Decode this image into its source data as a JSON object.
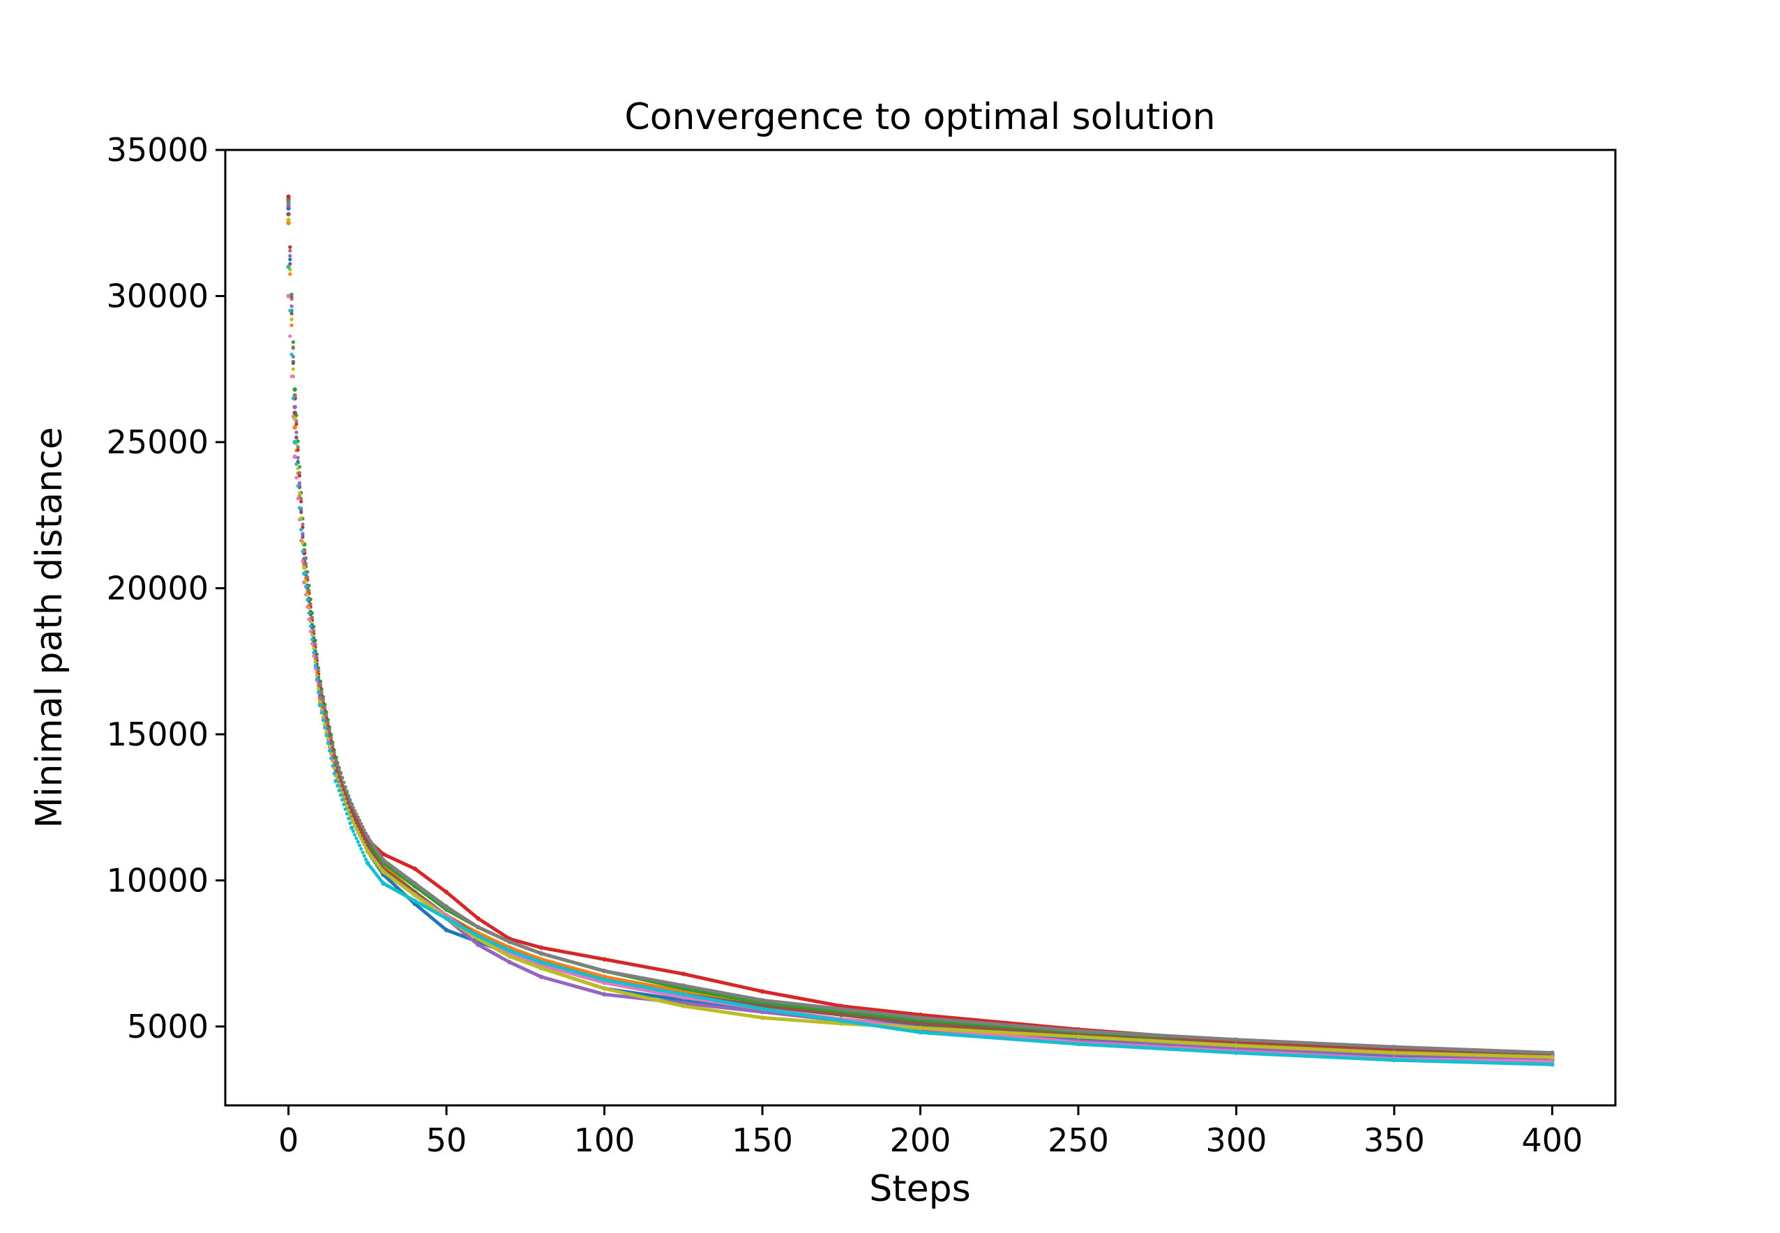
{
  "chart_data": {
    "type": "scatter",
    "title": "Convergence to optimal solution",
    "xlabel": "Steps",
    "ylabel": "Minimal path distance",
    "xlim": [
      -20,
      420
    ],
    "ylim": [
      2300,
      35000
    ],
    "xticks": [
      0,
      50,
      100,
      150,
      200,
      250,
      300,
      350,
      400
    ],
    "yticks": [
      5000,
      10000,
      15000,
      20000,
      25000,
      30000,
      35000
    ],
    "xtick_labels": [
      "0",
      "50",
      "100",
      "150",
      "200",
      "250",
      "300",
      "350",
      "400"
    ],
    "ytick_labels": [
      "5000",
      "10000",
      "15000",
      "20000",
      "25000",
      "30000",
      "35000"
    ],
    "grid": false,
    "legend": false,
    "series": [
      {
        "color": "#1f77b4",
        "x": [
          0,
          2,
          5,
          10,
          15,
          20,
          25,
          30,
          40,
          50,
          60,
          70,
          80,
          100,
          125,
          150,
          175,
          200,
          250,
          300,
          350,
          400
        ],
        "y": [
          33000,
          26000,
          21000,
          16500,
          13800,
          12200,
          11000,
          10200,
          9200,
          8300,
          7900,
          7500,
          7000,
          6300,
          5900,
          5500,
          5250,
          5000,
          4550,
          4250,
          4000,
          3850
        ]
      },
      {
        "color": "#ff7f0e",
        "x": [
          0,
          2,
          5,
          10,
          15,
          20,
          25,
          30,
          40,
          50,
          60,
          70,
          80,
          100,
          125,
          150,
          175,
          200,
          250,
          300,
          350,
          400
        ],
        "y": [
          32500,
          25500,
          20800,
          16200,
          13900,
          12300,
          11200,
          10500,
          9600,
          8800,
          8200,
          7700,
          7300,
          6700,
          6200,
          5700,
          5400,
          5100,
          4650,
          4350,
          4100,
          3950
        ]
      },
      {
        "color": "#2ca02c",
        "x": [
          0,
          2,
          5,
          10,
          15,
          20,
          25,
          30,
          40,
          50,
          60,
          70,
          80,
          100,
          125,
          150,
          175,
          200,
          250,
          300,
          350,
          400
        ],
        "y": [
          33300,
          26800,
          21500,
          16800,
          14200,
          12500,
          11300,
          10600,
          9800,
          9000,
          8400,
          7900,
          7500,
          6900,
          6300,
          5800,
          5500,
          5200,
          4750,
          4450,
          4200,
          4000
        ]
      },
      {
        "color": "#d62728",
        "x": [
          0,
          2,
          5,
          10,
          15,
          20,
          25,
          30,
          40,
          50,
          60,
          70,
          80,
          100,
          125,
          150,
          175,
          200,
          250,
          300,
          350,
          400
        ],
        "y": [
          33400,
          26500,
          21200,
          16600,
          14000,
          12400,
          11400,
          10900,
          10400,
          9600,
          8700,
          8000,
          7700,
          7300,
          6800,
          6200,
          5700,
          5400,
          4900,
          4500,
          4200,
          4050
        ]
      },
      {
        "color": "#9467bd",
        "x": [
          0,
          2,
          5,
          10,
          15,
          20,
          25,
          30,
          40,
          50,
          60,
          70,
          80,
          100,
          125,
          150,
          175,
          200,
          250,
          300,
          350,
          400
        ],
        "y": [
          33100,
          26200,
          21000,
          16300,
          13700,
          12100,
          11100,
          10300,
          9500,
          8700,
          7800,
          7200,
          6700,
          6100,
          5800,
          5500,
          5200,
          4900,
          4500,
          4250,
          4050,
          3900
        ]
      },
      {
        "color": "#8c564b",
        "x": [
          0,
          2,
          5,
          10,
          15,
          20,
          25,
          30,
          40,
          50,
          60,
          70,
          80,
          100,
          125,
          150,
          175,
          200,
          250,
          300,
          350,
          400
        ],
        "y": [
          32800,
          26000,
          20900,
          16400,
          13900,
          12300,
          11200,
          10400,
          9600,
          8800,
          8100,
          7600,
          7200,
          6600,
          6100,
          5700,
          5400,
          5100,
          4700,
          4400,
          4150,
          4000
        ]
      },
      {
        "color": "#e377c2",
        "x": [
          0,
          2,
          5,
          10,
          15,
          20,
          25,
          30,
          40,
          50,
          60,
          70,
          80,
          100,
          125,
          150,
          175,
          200,
          250,
          300,
          350,
          400
        ],
        "y": [
          30000,
          24500,
          20200,
          16000,
          13600,
          12100,
          11000,
          10300,
          9500,
          8800,
          8000,
          7500,
          7100,
          6500,
          6000,
          5600,
          5250,
          4950,
          4450,
          4150,
          3900,
          3800
        ]
      },
      {
        "color": "#7f7f7f",
        "x": [
          0,
          2,
          5,
          10,
          15,
          20,
          25,
          30,
          40,
          50,
          60,
          70,
          80,
          100,
          125,
          150,
          175,
          200,
          250,
          300,
          350,
          400
        ],
        "y": [
          33200,
          26600,
          21300,
          16700,
          14100,
          12600,
          11500,
          10700,
          9900,
          9100,
          8400,
          7900,
          7500,
          6900,
          6400,
          5900,
          5600,
          5300,
          4850,
          4550,
          4300,
          4100
        ]
      },
      {
        "color": "#bcbd22",
        "x": [
          0,
          2,
          5,
          10,
          15,
          20,
          25,
          30,
          40,
          50,
          60,
          70,
          80,
          100,
          125,
          150,
          175,
          200,
          250,
          300,
          350,
          400
        ],
        "y": [
          32600,
          25800,
          20700,
          16100,
          13600,
          12100,
          11000,
          10300,
          9500,
          8700,
          8000,
          7400,
          7000,
          6300,
          5700,
          5300,
          5100,
          4950,
          4650,
          4350,
          4100,
          3950
        ]
      },
      {
        "color": "#17becf",
        "x": [
          0,
          2,
          5,
          10,
          15,
          20,
          25,
          30,
          40,
          50,
          60,
          70,
          80,
          100,
          125,
          150,
          175,
          200,
          250,
          300,
          350,
          400
        ],
        "y": [
          31000,
          25000,
          20500,
          16000,
          13400,
          11800,
          10600,
          9900,
          9300,
          8700,
          8100,
          7600,
          7200,
          6600,
          6100,
          5600,
          5200,
          4800,
          4400,
          4100,
          3850,
          3700
        ]
      }
    ]
  }
}
